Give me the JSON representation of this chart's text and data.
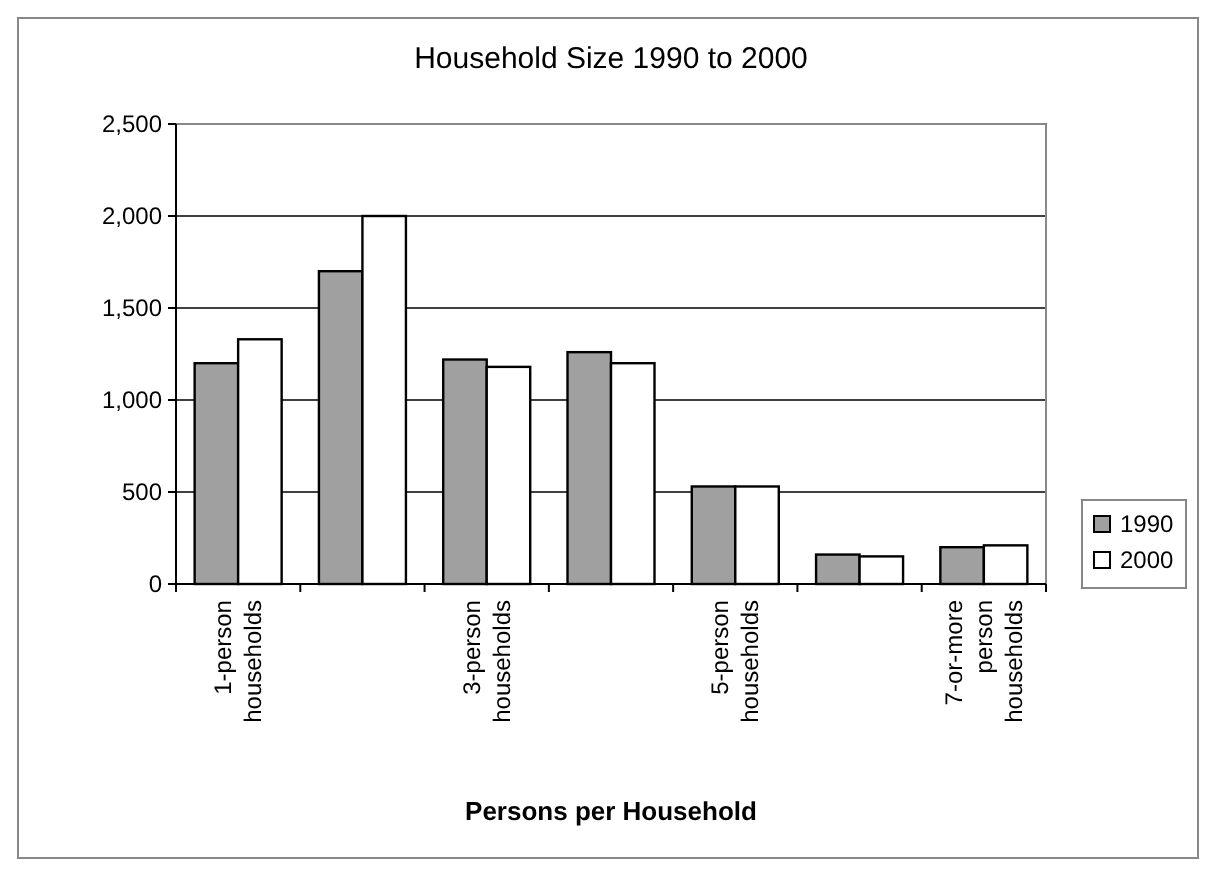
{
  "chart_data": {
    "type": "bar",
    "title": "Household Size 1990 to 2000",
    "xlabel": "Persons per Household",
    "categories": [
      "1-person households",
      null,
      "3-person households",
      null,
      "5-person households",
      null,
      "7-or-more person households"
    ],
    "series": [
      {
        "name": "1990",
        "color": "#a0a0a0",
        "values": [
          1200,
          1700,
          1220,
          1260,
          530,
          160,
          200
        ]
      },
      {
        "name": "2000",
        "color": "#ffffff",
        "values": [
          1330,
          2000,
          1180,
          1200,
          530,
          150,
          210
        ]
      }
    ],
    "ylim": [
      0,
      2500
    ],
    "yticks": [
      {
        "value": 0,
        "label": "0"
      },
      {
        "value": 500,
        "label": "500"
      },
      {
        "value": 1000,
        "label": "1,000"
      },
      {
        "value": 1500,
        "label": "1,500"
      },
      {
        "value": 2000,
        "label": "2,000"
      },
      {
        "value": 2500,
        "label": "2,500"
      }
    ],
    "grid": "y",
    "legend": "right"
  }
}
